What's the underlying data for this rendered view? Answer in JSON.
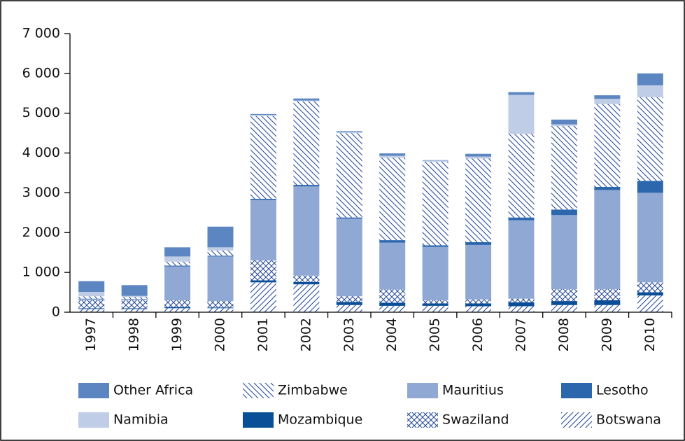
{
  "chart_data": {
    "type": "stacked_bar",
    "categories": [
      "1997",
      "1998",
      "1999",
      "2000",
      "2001",
      "2002",
      "2003",
      "2004",
      "2005",
      "2006",
      "2007",
      "2008",
      "2009",
      "2010"
    ],
    "series": [
      {
        "name": "Botswana",
        "color": "#2a4d9a",
        "pattern": "slash",
        "values": [
          80,
          80,
          100,
          100,
          750,
          700,
          180,
          160,
          160,
          150,
          150,
          180,
          180,
          420
        ]
      },
      {
        "name": "Mozambique",
        "color": "#0a4e97",
        "values": [
          20,
          20,
          30,
          20,
          50,
          60,
          80,
          80,
          60,
          70,
          100,
          100,
          120,
          80
        ]
      },
      {
        "name": "Swaziland",
        "color": "#2a4d9a",
        "pattern": "crosshatch",
        "values": [
          200,
          200,
          170,
          160,
          500,
          160,
          140,
          330,
          80,
          100,
          90,
          300,
          280,
          250
        ]
      },
      {
        "name": "Mauritius",
        "color": "#8fa8d4",
        "values": [
          30,
          20,
          850,
          1120,
          1520,
          2240,
          1950,
          1180,
          1340,
          1370,
          1970,
          1860,
          2490,
          2250
        ]
      },
      {
        "name": "Lesotho",
        "color": "#2c67ae",
        "values": [
          10,
          10,
          20,
          20,
          30,
          40,
          30,
          60,
          40,
          70,
          70,
          140,
          80,
          300
        ]
      },
      {
        "name": "Zimbabwe",
        "color": "#2a4d9a",
        "pattern": "backslash",
        "values": [
          60,
          50,
          100,
          130,
          2080,
          2100,
          2120,
          2070,
          2100,
          2100,
          2100,
          2100,
          2080,
          2100
        ]
      },
      {
        "name": "Namibia",
        "color": "#c0cde6",
        "values": [
          110,
          30,
          130,
          80,
          30,
          20,
          30,
          50,
          30,
          50,
          980,
          40,
          130,
          300
        ]
      },
      {
        "name": "Other Africa",
        "color": "#5b86c1",
        "values": [
          270,
          270,
          230,
          520,
          20,
          50,
          20,
          60,
          10,
          70,
          70,
          120,
          90,
          300
        ]
      }
    ],
    "ylim": [
      0,
      7000
    ],
    "yticks": [
      {
        "value": 0,
        "label": "0"
      },
      {
        "value": 1000,
        "label": "1 000"
      },
      {
        "value": 2000,
        "label": "2 000"
      },
      {
        "value": 3000,
        "label": "3 000"
      },
      {
        "value": 4000,
        "label": "4 000"
      },
      {
        "value": 5000,
        "label": "5 000"
      },
      {
        "value": 6000,
        "label": "6 000"
      },
      {
        "value": 7000,
        "label": "7 000"
      }
    ],
    "grid": false
  }
}
